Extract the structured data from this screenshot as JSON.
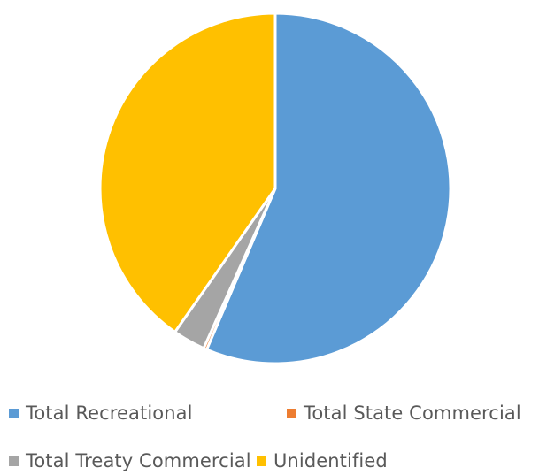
{
  "chart_data": {
    "type": "pie",
    "title": "",
    "legend_position": "bottom",
    "series": [
      {
        "name": "",
        "labels": [
          "Total Recreational",
          "Total State Commercial",
          "Total Treaty Commercial",
          "Unidentified"
        ],
        "values": [
          56.4,
          0.3,
          3.0,
          40.3
        ],
        "colors": [
          "#5B9BD5",
          "#ED7D31",
          "#A5A5A5",
          "#FFC000"
        ]
      }
    ],
    "legend": [
      {
        "label": "Total Recreational",
        "color": "#5B9BD5"
      },
      {
        "label": "Total State Commercial",
        "color": "#ED7D31"
      },
      {
        "label": "Total Treaty Commercial",
        "color": "#A5A5A5"
      },
      {
        "label": "Unidentified",
        "color": "#FFC000"
      }
    ]
  }
}
